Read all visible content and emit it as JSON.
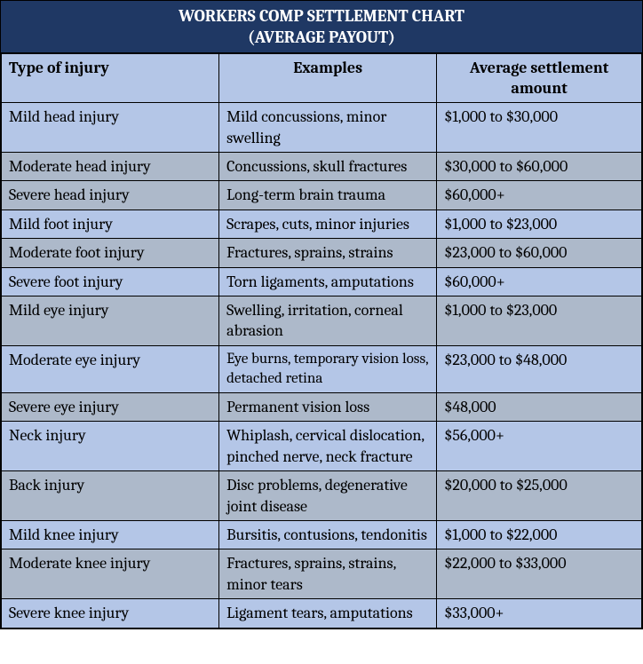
{
  "title_line1": "WORKERS COMP SETTLEMENT CHART",
  "title_line2": "(AVERAGE PAYOUT)",
  "columns": {
    "c1": "Type of injury",
    "c2": "Examples",
    "c3": "Average settlement amount"
  },
  "rows": [
    {
      "band": "a",
      "type": "Mild head injury",
      "examples": "Mild concussions, minor swelling",
      "amount": "$1,000 to $30,000"
    },
    {
      "band": "b",
      "type": "Moderate head injury",
      "examples": "Concussions, skull fractures",
      "amount": "$30,000 to $60,000"
    },
    {
      "band": "b",
      "type": "Severe head injury",
      "examples": "Long-term brain trauma",
      "amount": "$60,000+"
    },
    {
      "band": "a",
      "type": "Mild foot injury",
      "examples": "Scrapes, cuts, minor injuries",
      "amount": "$1,000 to $23,000"
    },
    {
      "band": "b",
      "type": "Moderate foot injury",
      "examples": "Fractures, sprains, strains",
      "amount": "$23,000 to $60,000"
    },
    {
      "band": "a",
      "type": "Severe foot injury",
      "examples": "Torn ligaments, amputations",
      "amount": "$60,000+"
    },
    {
      "band": "b",
      "type": "Mild eye injury",
      "examples": "Swelling, irritation, corneal abrasion",
      "amount": "$1,000 to $23,000"
    },
    {
      "band": "a",
      "type": "Moderate eye injury",
      "examples": "Eye burns, temporary vision loss, detached retina",
      "amount": "$23,000 to $48,000",
      "smallExamples": true
    },
    {
      "band": "b",
      "type": "Severe eye injury",
      "examples": "Permanent vision loss",
      "amount": "$48,000"
    },
    {
      "band": "a",
      "type": "Neck injury",
      "examples": "Whiplash, cervical dislocation, pinched nerve, neck fracture",
      "amount": "$56,000+"
    },
    {
      "band": "b",
      "type": "Back injury",
      "examples": "Disc problems, degenerative joint disease",
      "amount": "$20,000 to $25,000"
    },
    {
      "band": "a",
      "type": "Mild knee injury",
      "examples": "Bursitis, contusions, tendonitis",
      "amount": "$1,000 to $22,000"
    },
    {
      "band": "b",
      "type": "Moderate knee injury",
      "examples": "Fractures, sprains, strains, minor tears",
      "amount": "$22,000 to $33,000"
    },
    {
      "band": "a",
      "type": "Severe knee injury",
      "examples": "Ligament tears, amputations",
      "amount": "$33,000+"
    }
  ],
  "colors": {
    "title_bg": "#1f3864",
    "title_fg": "#ffffff",
    "band_a": "#b4c6e7",
    "band_b": "#adb9ca",
    "border": "#000000"
  }
}
